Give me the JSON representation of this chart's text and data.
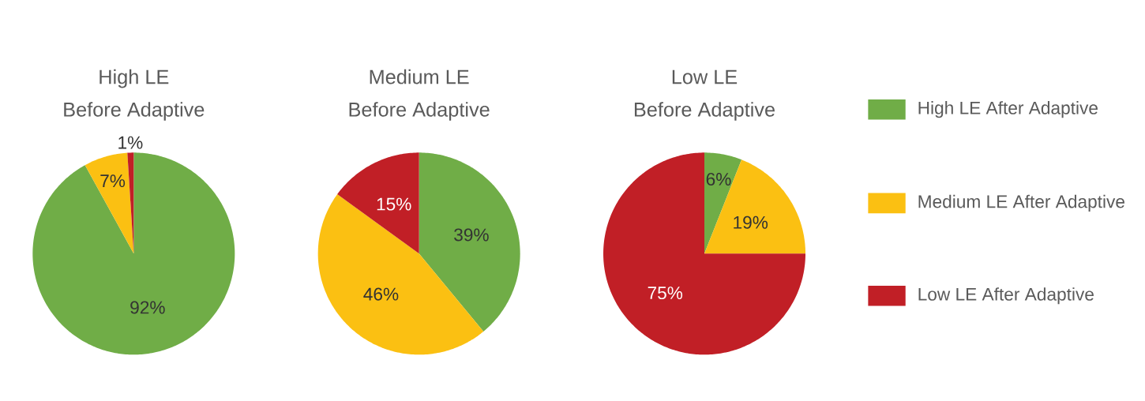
{
  "chart_data": [
    {
      "type": "pie",
      "title": "High LE",
      "subtitle": "Before Adaptive",
      "categories": [
        null,
        null,
        null
      ],
      "values": [
        92,
        7,
        1
      ],
      "colors": [
        "#70ad47",
        "#fbc012",
        "#c11f26"
      ],
      "value_labels": [
        "92%",
        "7%",
        "1%"
      ]
    },
    {
      "type": "pie",
      "title": "Medium LE",
      "subtitle": "Before Adaptive",
      "categories": [
        null,
        null,
        null
      ],
      "values": [
        39,
        46,
        15
      ],
      "colors": [
        "#70ad47",
        "#fbc012",
        "#c11f26"
      ],
      "value_labels": [
        "39%",
        "46%",
        "15%"
      ]
    },
    {
      "type": "pie",
      "title": "Low LE",
      "subtitle": "Before Adaptive",
      "categories": [
        "High LE After Adaptive",
        "Medium LE After Adaptive",
        "Low LE After Adaptive"
      ],
      "values": [
        6,
        19,
        75
      ],
      "colors": [
        "#70ad47",
        "#fbc012",
        "#c11f26"
      ],
      "value_labels": [
        "6%",
        "19%",
        "75%"
      ],
      "legend": "right"
    }
  ]
}
